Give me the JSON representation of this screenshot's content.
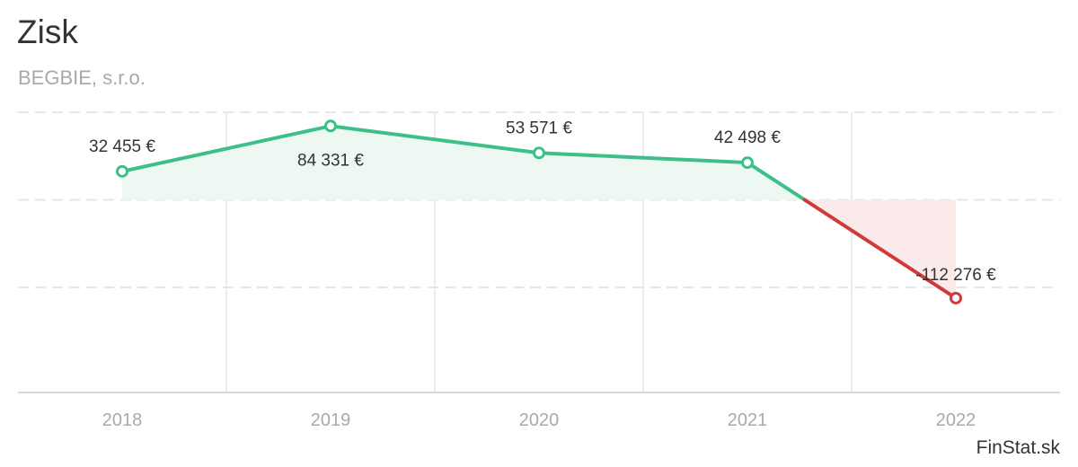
{
  "title": "Zisk",
  "subtitle": "BEGBIE, s.r.o.",
  "credits": "FinStat.sk",
  "colors": {
    "positive": "#3cbf88",
    "negative": "#d03a3a",
    "positive_fill": "#eef8f3",
    "negative_fill": "#fbeaea",
    "grid": "#e6e6e6",
    "axis_text": "#a9a9a9",
    "label_text": "#333333"
  },
  "chart_data": {
    "type": "line",
    "categories": [
      "2018",
      "2019",
      "2020",
      "2021",
      "2022"
    ],
    "series": [
      {
        "values": [
          32455,
          84331,
          53571,
          42498,
          -112276
        ]
      }
    ],
    "data_labels": [
      "32 455 €",
      "84 331 €",
      "53 571 €",
      "42 498 €",
      "-112 276 €"
    ],
    "ylim": [
      -220000,
      100000
    ],
    "y_gridlines": [
      100000,
      0,
      -100000
    ],
    "grid": true,
    "legend": false,
    "area_fill": true,
    "negative_color_below": 0,
    "xlabel": "",
    "ylabel": ""
  }
}
